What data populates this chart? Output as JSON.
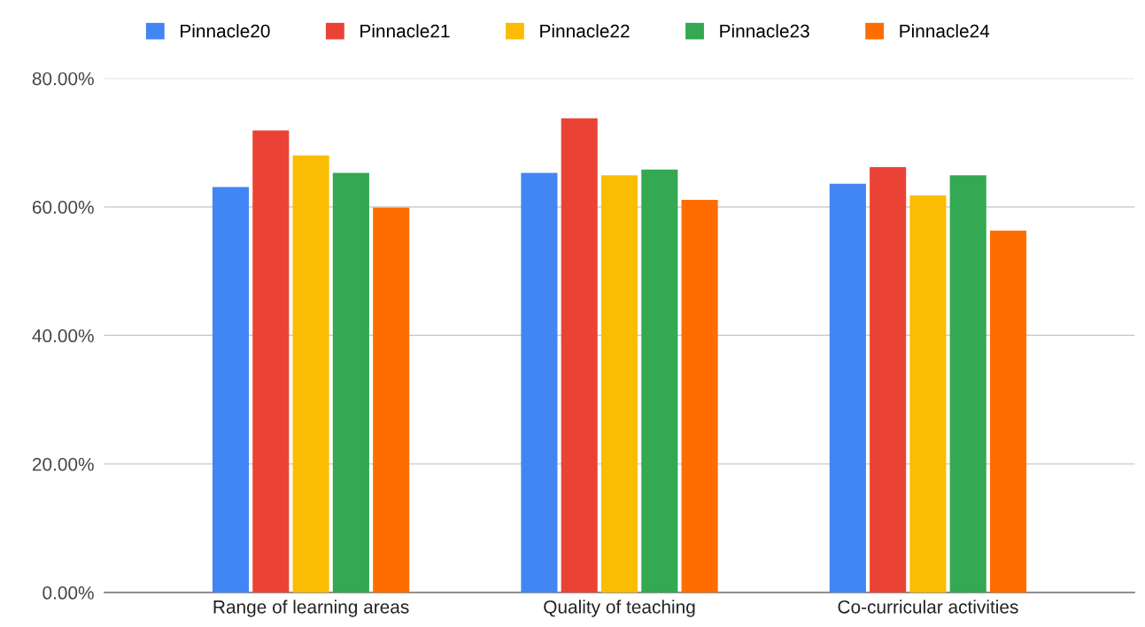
{
  "chart_data": {
    "type": "bar",
    "categories": [
      "Range of learning areas",
      "Quality of teaching",
      "Co-curricular activities"
    ],
    "series": [
      {
        "name": "Pinnacle20",
        "color": "#4285f4",
        "values": [
          63.1,
          65.3,
          63.6
        ]
      },
      {
        "name": "Pinnacle21",
        "color": "#ea4335",
        "values": [
          71.9,
          73.8,
          66.2
        ]
      },
      {
        "name": "Pinnacle22",
        "color": "#fbbc04",
        "values": [
          68.0,
          64.9,
          61.8
        ]
      },
      {
        "name": "Pinnacle23",
        "color": "#34a853",
        "values": [
          65.3,
          65.8,
          64.9
        ]
      },
      {
        "name": "Pinnacle24",
        "color": "#ff6d01",
        "values": [
          59.9,
          61.1,
          56.3
        ]
      }
    ],
    "ylim": [
      0,
      80
    ],
    "yticks": [
      {
        "value": 0,
        "label": "0.00%"
      },
      {
        "value": 20,
        "label": "20.00%"
      },
      {
        "value": 40,
        "label": "40.00%"
      },
      {
        "value": 60,
        "label": "60.00%"
      },
      {
        "value": 80,
        "label": "80.00%"
      }
    ],
    "grid": "y",
    "legend": "top"
  }
}
